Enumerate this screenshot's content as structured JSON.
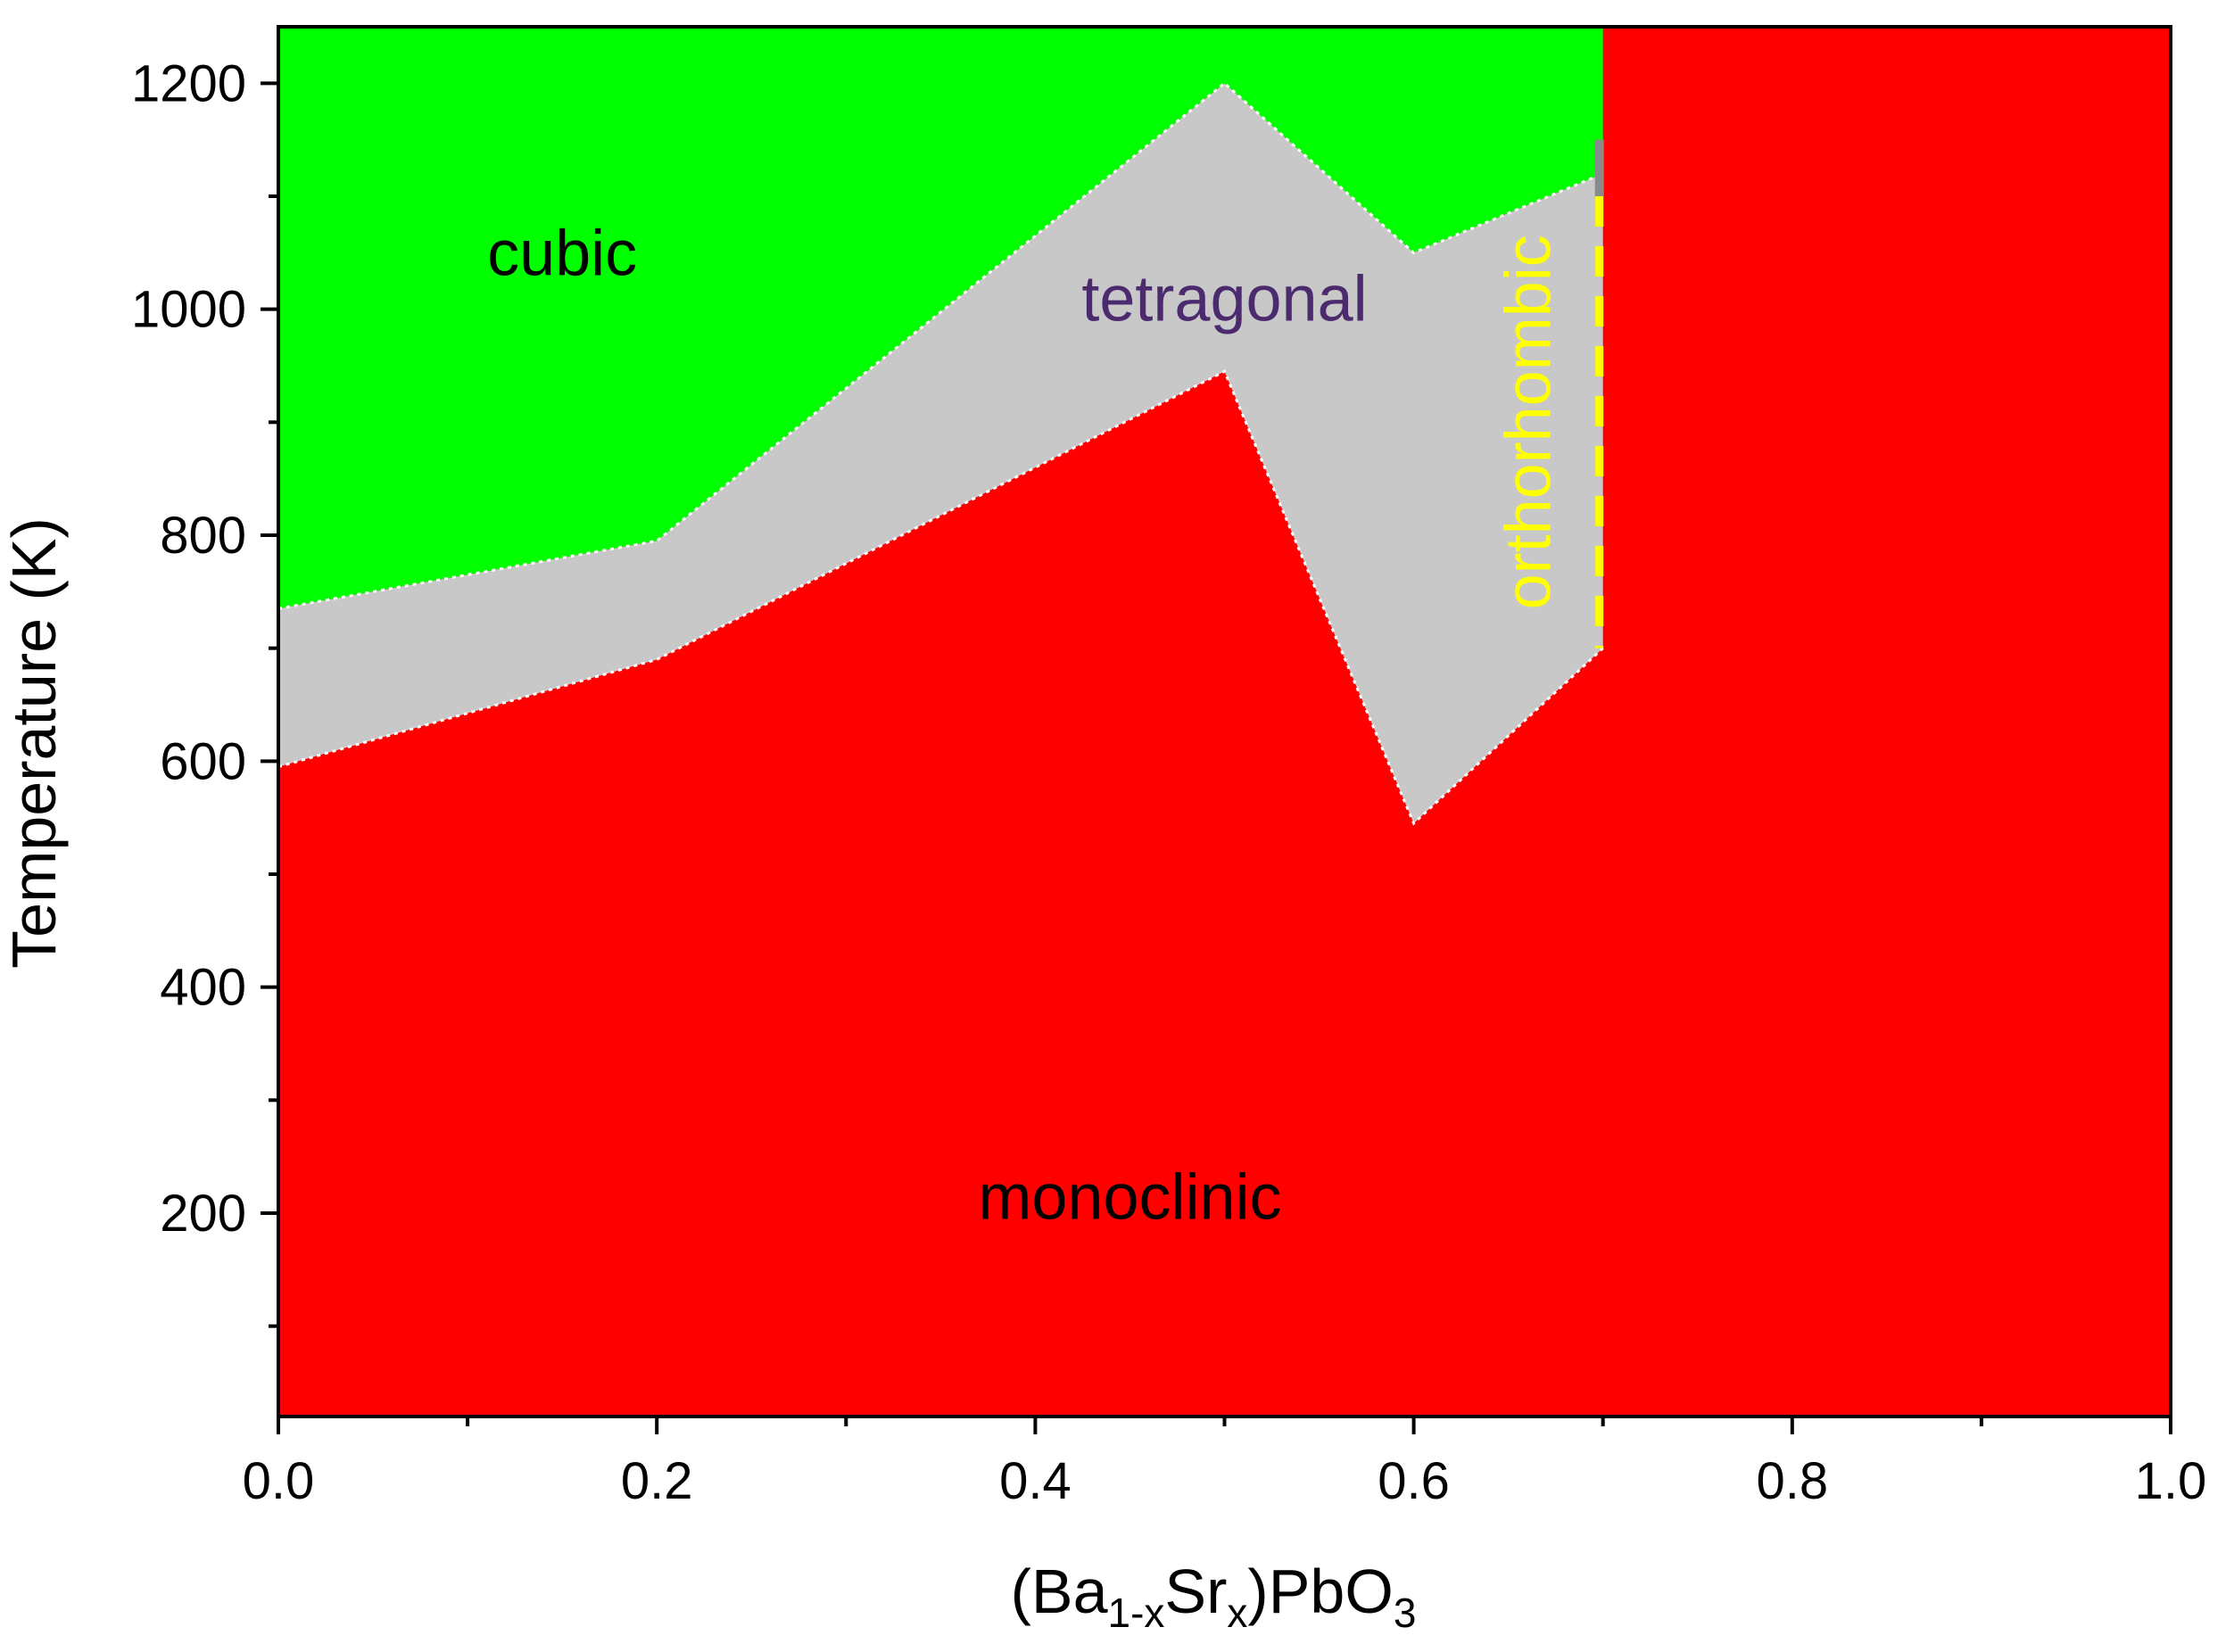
{
  "chart_data": {
    "type": "area",
    "title": "",
    "xlabel": {
      "main": "(Ba",
      "sub1": "1-x",
      "mid": "Sr",
      "sub2": "x",
      "tail": ")PbO",
      "sub3": "3"
    },
    "ylabel": "Temperature (K)",
    "xlim": [
      0.0,
      1.0
    ],
    "ylim": [
      20,
      1250
    ],
    "xticks": [
      {
        "value": 0.0,
        "label": "0.0"
      },
      {
        "value": 0.2,
        "label": "0.2"
      },
      {
        "value": 0.4,
        "label": "0.4"
      },
      {
        "value": 0.6,
        "label": "0.6"
      },
      {
        "value": 0.8,
        "label": "0.8"
      },
      {
        "value": 1.0,
        "label": "1.0"
      }
    ],
    "xminor": [
      0.1,
      0.3,
      0.5,
      0.7,
      0.9
    ],
    "yticks": [
      {
        "value": 200,
        "label": "200"
      },
      {
        "value": 400,
        "label": "400"
      },
      {
        "value": 600,
        "label": "600"
      },
      {
        "value": 800,
        "label": "800"
      },
      {
        "value": 1000,
        "label": "1000"
      },
      {
        "value": 1200,
        "label": "1200"
      }
    ],
    "yminor": [
      100,
      300,
      500,
      700,
      900,
      1100
    ],
    "boundaries": {
      "monoclinic_upper": {
        "x": [
          0.0,
          0.2,
          0.5,
          0.6,
          0.7
        ],
        "y": [
          595,
          690,
          945,
          545,
          700
        ]
      },
      "tetragonal_upper": {
        "x": [
          0.0,
          0.2,
          0.5,
          0.6,
          0.7
        ],
        "y": [
          735,
          795,
          1200,
          1050,
          1120
        ]
      },
      "orthorhombic_x": 0.7,
      "orthorhombic_range": [
        700,
        1150
      ]
    },
    "phases": [
      {
        "name": "cubic",
        "color": "#00ff00",
        "label_x": 0.15,
        "label_y": 1030,
        "label_color": "#000000"
      },
      {
        "name": "tetragonal",
        "color": "#c8c8c8",
        "label_x": 0.5,
        "label_y": 990,
        "label_color": "#4b2a6e"
      },
      {
        "name": "orthorhombic",
        "color": "#ffff00",
        "label_x": 0.672,
        "label_y": 900,
        "label_color": "#ffff00",
        "rotated": true
      },
      {
        "name": "monoclinic",
        "color": "#ff0000",
        "label_x": 0.45,
        "label_y": 195,
        "label_color": "#000000"
      }
    ]
  }
}
